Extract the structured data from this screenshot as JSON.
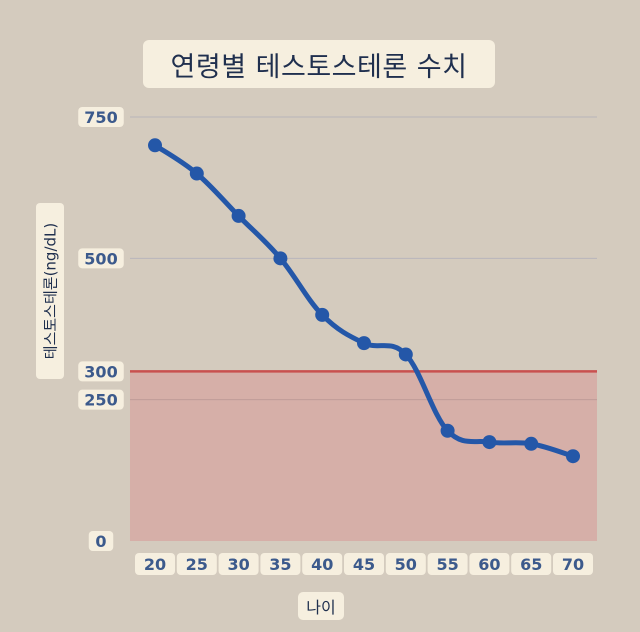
{
  "colors": {
    "background": "#d4cbbe",
    "label_box": "#f6efdf",
    "line": "#2457a8",
    "threshold_line": "#c9504f",
    "threshold_fill": "#d6aaa4",
    "gridline": "#b9b5bb",
    "text_dark": "#1f2f4e",
    "tick_text": "#3c5a8c"
  },
  "chart_data": {
    "type": "line",
    "title": "연령별 테스토스테론 수치",
    "xlabel": "나이",
    "ylabel": "테스토스테론(ng/dL)",
    "categories": [
      "20",
      "25",
      "30",
      "35",
      "40",
      "45",
      "50",
      "55",
      "60",
      "65",
      "70"
    ],
    "series": [
      {
        "values": [
          700,
          650,
          575,
          500,
          400,
          350,
          330,
          195,
          175,
          172,
          150
        ]
      }
    ],
    "yticks": [
      0,
      250,
      300,
      500,
      750
    ],
    "ylim": [
      0,
      750
    ],
    "threshold": 300,
    "grid": true,
    "legend": "none"
  }
}
